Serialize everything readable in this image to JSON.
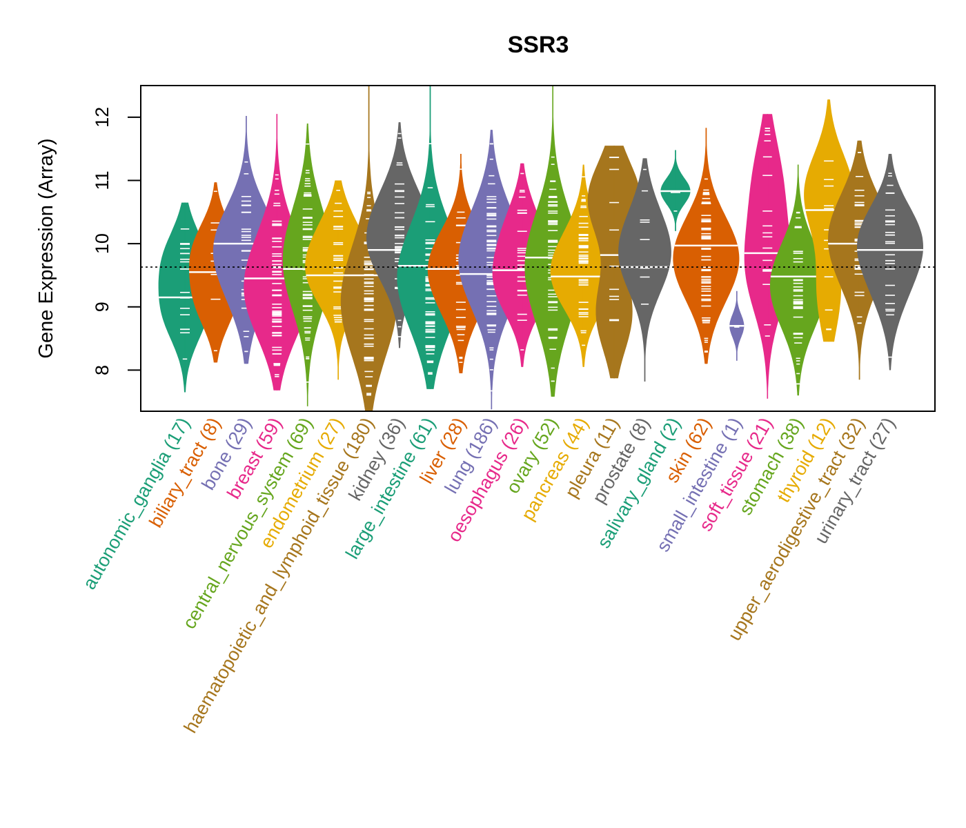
{
  "chart_data": {
    "type": "violin",
    "title": "SSR3",
    "xlabel": "",
    "ylabel": "Gene Expression (Array)",
    "ylim": [
      7.35,
      12.5
    ],
    "yticks": [
      8,
      9,
      10,
      11,
      12
    ],
    "reference_line": 9.63,
    "grid": false,
    "legend": "none",
    "categories": [
      {
        "name": "autonomic_ganglia",
        "n": 17,
        "color": "#1b9e77",
        "median": 9.15,
        "min": 7.65,
        "max": 10.65,
        "modes": [
          [
            9.75,
            0.8
          ],
          [
            8.9,
            0.8
          ]
        ]
      },
      {
        "name": "biliary_tract",
        "n": 8,
        "color": "#d95f02",
        "median": 9.55,
        "min": 8.12,
        "max": 10.97,
        "modes": [
          [
            9.9,
            0.8
          ],
          [
            9.1,
            0.7
          ]
        ]
      },
      {
        "name": "bone",
        "n": 29,
        "color": "#7570b3",
        "median": 10.0,
        "min": 8.1,
        "max": 12.02,
        "modes": [
          [
            10.05,
            1.0
          ],
          [
            9.3,
            0.45
          ]
        ]
      },
      {
        "name": "breast",
        "n": 59,
        "color": "#e7298a",
        "median": 9.45,
        "min": 7.68,
        "max": 12.05,
        "modes": [
          [
            9.1,
            1.0
          ],
          [
            9.9,
            0.5
          ]
        ]
      },
      {
        "name": "central_nervous_system",
        "n": 69,
        "color": "#66a61e",
        "median": 9.6,
        "min": 7.43,
        "max": 11.9,
        "modes": [
          [
            9.5,
            0.75
          ],
          [
            10.2,
            0.45
          ]
        ]
      },
      {
        "name": "endometrium",
        "n": 27,
        "color": "#e6ab02",
        "median": 9.5,
        "min": 7.85,
        "max": 11.0,
        "modes": [
          [
            9.45,
            1.0
          ],
          [
            10.1,
            0.6
          ]
        ]
      },
      {
        "name": "haematopoietic_and_lymphoid_tissue",
        "n": 180,
        "color": "#a6761d",
        "median": 9.5,
        "min": 7.35,
        "max": 12.5,
        "modes": [
          [
            9.3,
            0.85
          ],
          [
            8.8,
            0.65
          ]
        ]
      },
      {
        "name": "kidney",
        "n": 36,
        "color": "#666666",
        "median": 9.9,
        "min": 8.35,
        "max": 11.92,
        "modes": [
          [
            9.9,
            1.0
          ],
          [
            10.6,
            0.55
          ]
        ]
      },
      {
        "name": "large_intestine",
        "n": 61,
        "color": "#1b9e77",
        "median": 9.65,
        "min": 7.7,
        "max": 12.5,
        "modes": [
          [
            9.7,
            1.0
          ],
          [
            9.1,
            0.7
          ]
        ]
      },
      {
        "name": "liver",
        "n": 28,
        "color": "#d95f02",
        "median": 9.6,
        "min": 7.95,
        "max": 11.42,
        "modes": [
          [
            9.75,
            1.0
          ],
          [
            9.1,
            0.5
          ]
        ]
      },
      {
        "name": "lung",
        "n": 186,
        "color": "#7570b3",
        "median": 9.52,
        "min": 7.38,
        "max": 11.8,
        "modes": [
          [
            9.55,
            1.0
          ],
          [
            10.2,
            0.5
          ]
        ]
      },
      {
        "name": "oesophagus",
        "n": 26,
        "color": "#e7298a",
        "median": 9.58,
        "min": 8.05,
        "max": 11.27,
        "modes": [
          [
            9.35,
            0.9
          ],
          [
            10.2,
            0.55
          ]
        ]
      },
      {
        "name": "ovary",
        "n": 52,
        "color": "#66a61e",
        "median": 9.78,
        "min": 7.58,
        "max": 12.5,
        "modes": [
          [
            9.9,
            0.85
          ],
          [
            9.2,
            0.6
          ]
        ]
      },
      {
        "name": "pancreas",
        "n": 44,
        "color": "#e6ab02",
        "median": 9.48,
        "min": 8.05,
        "max": 11.25,
        "modes": [
          [
            9.4,
            1.0
          ],
          [
            10.0,
            0.5
          ]
        ]
      },
      {
        "name": "pleura",
        "n": 11,
        "color": "#a6761d",
        "median": 9.82,
        "min": 7.87,
        "max": 11.55,
        "modes": [
          [
            10.7,
            0.8
          ],
          [
            8.9,
            0.55
          ]
        ]
      },
      {
        "name": "prostate",
        "n": 8,
        "color": "#666666",
        "median": 9.63,
        "min": 7.82,
        "max": 11.35,
        "modes": [
          [
            9.7,
            0.8
          ],
          [
            10.3,
            0.4
          ]
        ]
      },
      {
        "name": "salivary_gland",
        "n": 2,
        "color": "#1b9e77",
        "median": 10.83,
        "min": 10.2,
        "max": 11.48,
        "modes": [
          [
            10.83,
            0.45
          ]
        ]
      },
      {
        "name": "skin",
        "n": 62,
        "color": "#d95f02",
        "median": 9.97,
        "min": 8.1,
        "max": 11.83,
        "modes": [
          [
            9.95,
            1.0
          ],
          [
            9.4,
            0.6
          ]
        ]
      },
      {
        "name": "small_intestine",
        "n": 1,
        "color": "#7570b3",
        "median": 8.7,
        "min": 8.15,
        "max": 9.25,
        "modes": [
          [
            8.7,
            0.22
          ]
        ]
      },
      {
        "name": "soft_tissue",
        "n": 21,
        "color": "#e7298a",
        "median": 9.85,
        "min": 7.55,
        "max": 12.05,
        "modes": [
          [
            9.6,
            0.7
          ],
          [
            11.0,
            0.45
          ]
        ]
      },
      {
        "name": "stomach",
        "n": 38,
        "color": "#66a61e",
        "median": 9.48,
        "min": 7.6,
        "max": 11.25,
        "modes": [
          [
            9.55,
            0.85
          ],
          [
            9.0,
            0.6
          ]
        ]
      },
      {
        "name": "thyroid",
        "n": 12,
        "color": "#e6ab02",
        "median": 10.53,
        "min": 8.45,
        "max": 12.28,
        "modes": [
          [
            10.8,
            0.75
          ],
          [
            9.2,
            0.35
          ]
        ]
      },
      {
        "name": "upper_aerodigestive_tract",
        "n": 32,
        "color": "#a6761d",
        "median": 10.0,
        "min": 7.85,
        "max": 11.63,
        "modes": [
          [
            10.3,
            0.95
          ],
          [
            9.6,
            0.6
          ]
        ]
      },
      {
        "name": "urinary_tract",
        "n": 27,
        "color": "#666666",
        "median": 9.9,
        "min": 8.0,
        "max": 11.42,
        "modes": [
          [
            10.1,
            1.0
          ],
          [
            9.3,
            0.45
          ]
        ]
      }
    ]
  }
}
